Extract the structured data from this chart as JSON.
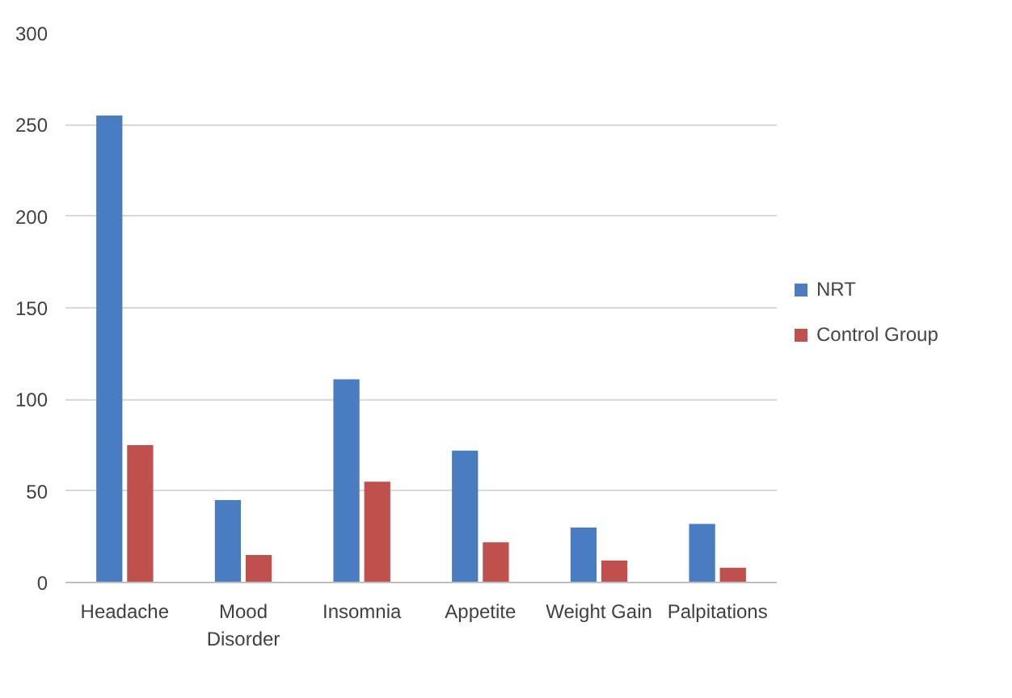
{
  "chart_data": {
    "type": "bar",
    "categories": [
      "Headache",
      "Mood Disorder",
      "Insomnia",
      "Appetite",
      "Weight Gain",
      "Palpitations"
    ],
    "series": [
      {
        "name": "NRT",
        "color": "#4a7cc1",
        "values": [
          255,
          45,
          111,
          72,
          30,
          32
        ]
      },
      {
        "name": "Control Group",
        "color": "#c0504d",
        "values": [
          75,
          15,
          55,
          22,
          12,
          8
        ]
      }
    ],
    "ylim": [
      0,
      300
    ],
    "yticks": [
      0,
      50,
      100,
      150,
      200,
      250,
      300
    ],
    "grid": "y",
    "legend": "right"
  }
}
